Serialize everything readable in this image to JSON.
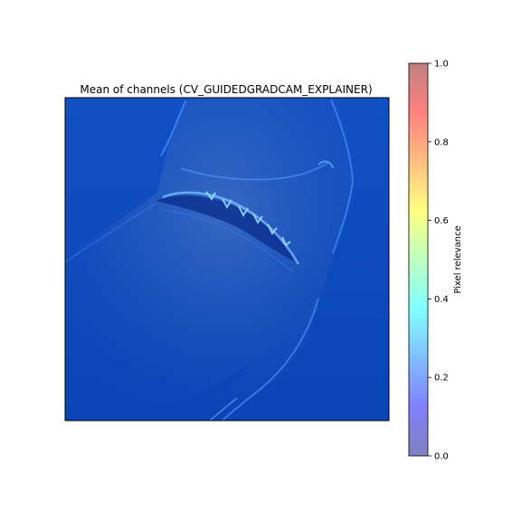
{
  "chart_data": {
    "type": "heatmap",
    "title": "Mean of channels (CV_GUIDEDGRADCAM_EXPLAINER)",
    "subject": "shark (underwater, viewed from below)",
    "overlay_cmap": "jet",
    "overlay_alpha": 0.5,
    "axes_ticks_visible": false,
    "colorbar": {
      "label": "Pixel relevance",
      "range": [
        0.0,
        1.0
      ],
      "ticks": [
        0.0,
        0.2,
        0.4,
        0.6,
        0.8,
        1.0
      ],
      "tick_labels": [
        "0.0",
        "0.2",
        "0.4",
        "0.6",
        "0.8",
        "1.0"
      ],
      "colors": [
        "#00007f",
        "#0000ff",
        "#007fff",
        "#00ffff",
        "#7fff7f",
        "#ffff00",
        "#ff7f00",
        "#ff0000",
        "#7f0000"
      ]
    },
    "relevance": {
      "background": 0.13,
      "max_highlight": 0.4,
      "highlighted_regions": [
        "jaw-line",
        "teeth",
        "snout outline",
        "pectoral fin edge"
      ]
    }
  }
}
